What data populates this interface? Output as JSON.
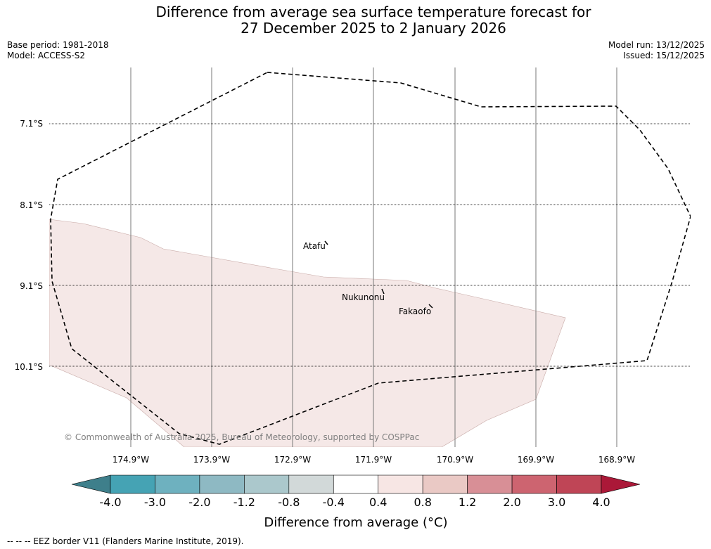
{
  "title": {
    "line1": "Difference from average sea surface temperature forecast for",
    "line2": "27 December 2025 to 2 January 2026"
  },
  "meta": {
    "base_period": "Base period: 1981-2018",
    "model": "Model: ACCESS-S2",
    "model_run": "Model run: 13/12/2025",
    "issued": "Issued: 15/12/2025"
  },
  "map": {
    "latitude_labels": [
      "7.1°S",
      "8.1°S",
      "9.1°S",
      "10.1°S"
    ],
    "longitude_labels": [
      "174.9°W",
      "173.9°W",
      "172.9°W",
      "171.9°W",
      "170.9°W",
      "169.9°W",
      "168.9°W"
    ],
    "places": [
      "Atafu",
      "Nukunonu",
      "Fakaofo"
    ],
    "copyright": "© Commonwealth of Australia 2025, Bureau of Meteorology, supported by COSPPac",
    "anomaly_fill_color": "#f5e8e7",
    "eez_line_color": "#000000"
  },
  "colorbar": {
    "ticks": [
      "-4.0",
      "-3.0",
      "-2.0",
      "-1.2",
      "-0.8",
      "-0.4",
      "0.4",
      "0.8",
      "1.2",
      "2.0",
      "3.0",
      "4.0"
    ],
    "colors": [
      "#3e7f8b",
      "#45a3b4",
      "#6eb1bf",
      "#8eb9c3",
      "#abc8cc",
      "#d2d9d9",
      "#ffffff",
      "#f7e6e4",
      "#eac9c5",
      "#d88f96",
      "#cd6470",
      "#bf4556",
      "#ab1838"
    ],
    "label": "Difference from average (°C)"
  },
  "footnote": "-- -- -- EEZ border V11 (Flanders Marine Institute, 2019)."
}
